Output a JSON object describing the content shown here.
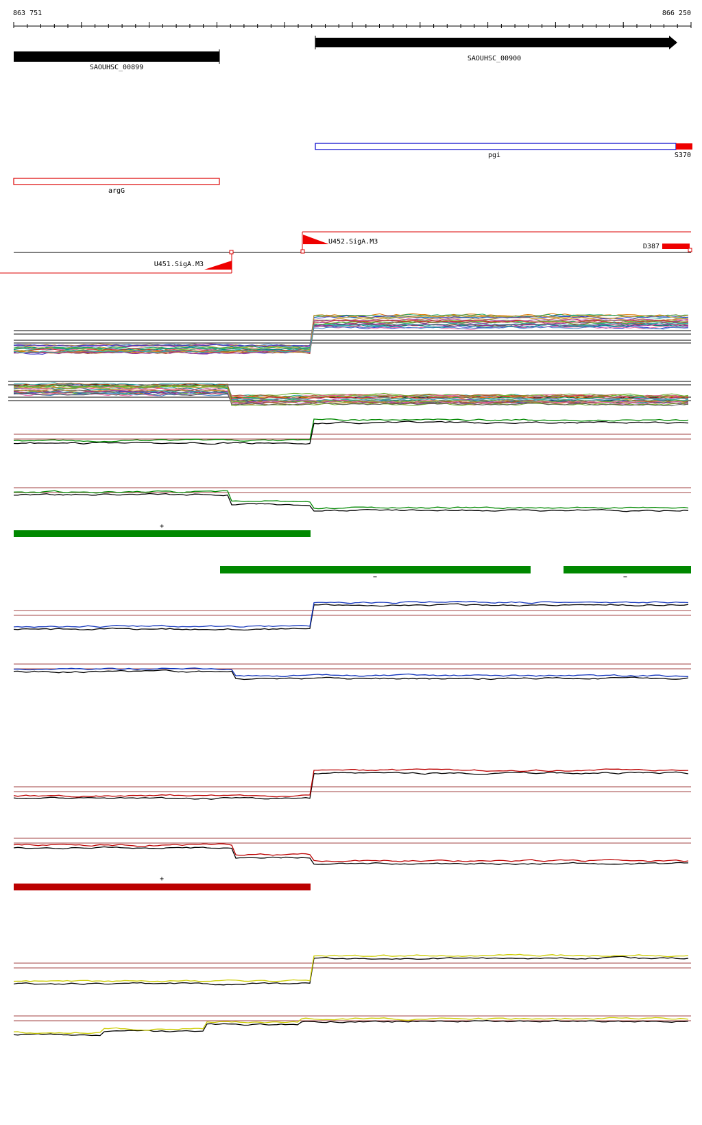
{
  "coordinates": {
    "start": "863 751",
    "end": "866 250"
  },
  "colors": {
    "gene": "#000000",
    "feature_blue": "#0000cc",
    "feature_red": "#dd0000",
    "threshold": "#a04040",
    "green": "#008800",
    "blue": "#1133bb",
    "red": "#bb0000",
    "yellow": "#cccc00"
  },
  "genes": [
    {
      "label": "SAOUHSC_00899",
      "strand": "-"
    },
    {
      "label": "SAOUHSC_00900",
      "strand": "+"
    }
  ],
  "features": [
    {
      "label": "pgi",
      "tag": "S370"
    },
    {
      "label": "argG"
    }
  ],
  "promoters": [
    {
      "label": "U452.SigA.M3"
    },
    {
      "label": "U451.SigA.M3"
    },
    {
      "label": "D387"
    }
  ],
  "segment_marks": [
    {
      "sign": "+"
    },
    {
      "sign": "−"
    },
    {
      "sign": "−"
    },
    {
      "sign": "+"
    }
  ]
}
